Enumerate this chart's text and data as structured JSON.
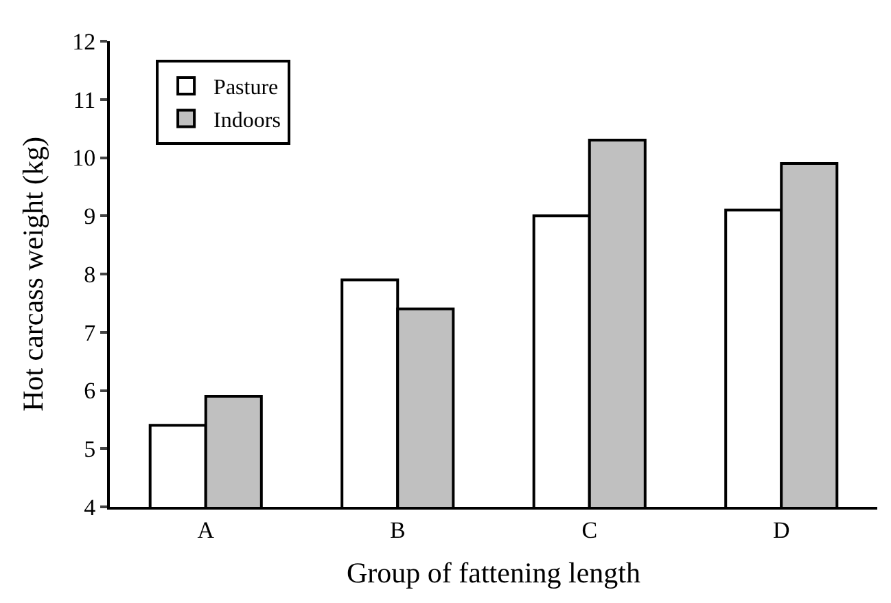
{
  "chart_data": {
    "type": "bar",
    "xlabel": "Group of fattening length",
    "ylabel": "Hot carcass weight (kg)",
    "categories": [
      "A",
      "B",
      "C",
      "D"
    ],
    "series": [
      {
        "name": "Pasture",
        "color": "#ffffff",
        "values": [
          5.4,
          7.9,
          9.0,
          9.1
        ]
      },
      {
        "name": "Indoors",
        "color": "#c0c0c0",
        "values": [
          5.9,
          7.4,
          10.3,
          9.9
        ]
      }
    ],
    "ylim": [
      4,
      12
    ],
    "yticks": [
      4,
      5,
      6,
      7,
      8,
      9,
      10,
      11,
      12
    ],
    "legend": "top left"
  }
}
